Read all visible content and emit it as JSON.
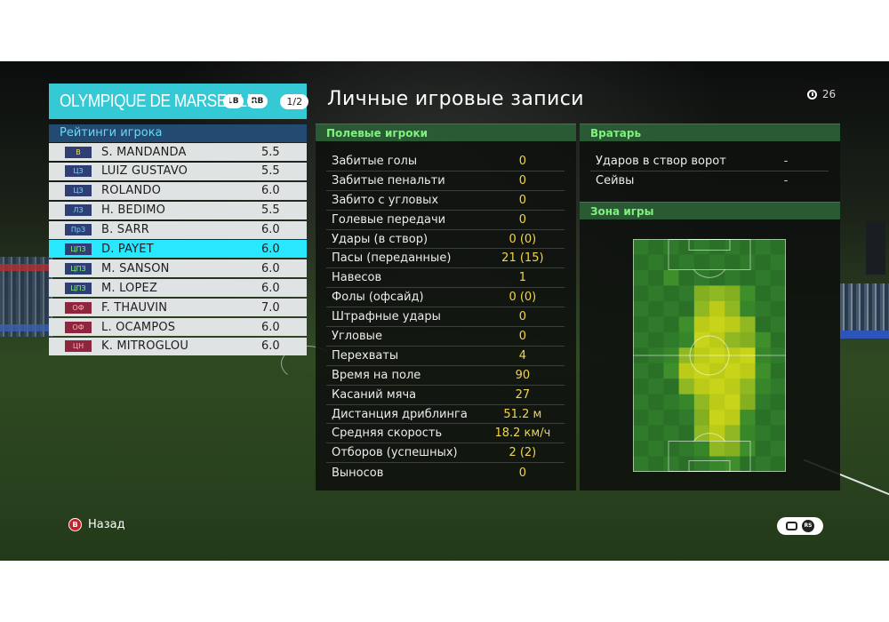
{
  "team": {
    "name": "OLYMPIQUE DE MARSEILLE",
    "lb_label": "LB",
    "rb_label": "RB",
    "page": "1/2"
  },
  "ratings": {
    "title": "Рейтинги игрока",
    "players": [
      {
        "pos": "В",
        "name": "S. MANDANDA",
        "rating": "5.5"
      },
      {
        "pos": "ЦЗ",
        "name": "LUIZ GUSTAVO",
        "rating": "5.5"
      },
      {
        "pos": "ЦЗ",
        "name": "ROLANDO",
        "rating": "6.0"
      },
      {
        "pos": "ЛЗ",
        "name": "H. BEDIMO",
        "rating": "5.5"
      },
      {
        "pos": "ПрЗ",
        "name": "B. SARR",
        "rating": "6.0"
      },
      {
        "pos": "ЦПЗ",
        "name": "D. PAYET",
        "rating": "6.0"
      },
      {
        "pos": "ЦПЗ",
        "name": "M. SANSON",
        "rating": "6.0"
      },
      {
        "pos": "ЦПЗ",
        "name": "M. LOPEZ",
        "rating": "6.0"
      },
      {
        "pos": "ОФ",
        "name": "F. THAUVIN",
        "rating": "7.0"
      },
      {
        "pos": "ОФ",
        "name": "L. OCAMPOS",
        "rating": "6.0"
      },
      {
        "pos": "ЦН",
        "name": "K. MITROGLOU",
        "rating": "6.0"
      }
    ],
    "selected_index": 5
  },
  "records": {
    "title": "Личные игровые записи",
    "timer": "26"
  },
  "outfield": {
    "title": "Полевые игроки",
    "rows": [
      {
        "label": "Забитые голы",
        "value": "0"
      },
      {
        "label": "Забитые пенальти",
        "value": "0"
      },
      {
        "label": "Забито с угловых",
        "value": "0"
      },
      {
        "label": "Голевые передачи",
        "value": "0"
      },
      {
        "label": "Удары (в створ)",
        "value": "0 (0)"
      },
      {
        "label": "Пасы (переданные)",
        "value": "21 (15)"
      },
      {
        "label": "Навесов",
        "value": "1"
      },
      {
        "label": "Фолы (офсайд)",
        "value": "0 (0)"
      },
      {
        "label": "Штрафные удары",
        "value": "0"
      },
      {
        "label": "Угловые",
        "value": "0"
      },
      {
        "label": "Перехваты",
        "value": "4"
      },
      {
        "label": "Время на поле",
        "value": "90"
      },
      {
        "label": "Касаний мяча",
        "value": "27"
      },
      {
        "label": "Дистанция дриблинга",
        "value": "51.2 м"
      },
      {
        "label": "Средняя скорость",
        "value": "18.2 км/ч"
      },
      {
        "label": "Отборов (успешных)",
        "value": "2 (2)"
      },
      {
        "label": "Выносов",
        "value": "0"
      }
    ]
  },
  "goalkeeper": {
    "title": "Вратарь",
    "rows": [
      {
        "label": "Ударов в створ ворот",
        "value": "-"
      },
      {
        "label": "Сейвы",
        "value": "-"
      }
    ]
  },
  "zone": {
    "title": "Зона игры",
    "heatmap": [
      [
        0,
        0,
        0,
        0,
        0,
        0,
        0,
        0,
        0,
        0
      ],
      [
        0,
        0,
        0,
        0,
        0,
        0,
        0,
        0,
        0,
        0
      ],
      [
        0,
        0,
        1,
        0,
        0,
        0,
        0,
        0,
        0,
        0
      ],
      [
        0,
        0,
        0,
        0,
        2,
        2,
        2,
        1,
        0,
        0
      ],
      [
        0,
        0,
        0,
        0,
        2,
        3,
        2,
        1,
        0,
        0
      ],
      [
        0,
        0,
        0,
        1,
        3,
        3,
        3,
        2,
        0,
        0
      ],
      [
        0,
        0,
        0,
        1,
        3,
        3,
        2,
        2,
        1,
        0
      ],
      [
        0,
        0,
        1,
        2,
        3,
        3,
        3,
        3,
        1,
        0
      ],
      [
        0,
        0,
        1,
        3,
        3,
        3,
        3,
        3,
        1,
        0
      ],
      [
        0,
        0,
        0,
        2,
        3,
        3,
        3,
        2,
        1,
        0
      ],
      [
        0,
        0,
        0,
        1,
        2,
        3,
        3,
        2,
        0,
        0
      ],
      [
        0,
        0,
        0,
        0,
        2,
        3,
        3,
        1,
        0,
        0
      ],
      [
        0,
        0,
        0,
        0,
        2,
        3,
        2,
        1,
        0,
        0
      ],
      [
        0,
        0,
        0,
        0,
        1,
        2,
        2,
        1,
        0,
        0
      ],
      [
        0,
        0,
        0,
        0,
        0,
        1,
        1,
        0,
        0,
        0
      ]
    ]
  },
  "footer": {
    "back_label": "Назад",
    "b_key": "B",
    "rs_key": "RS"
  },
  "colors": {
    "team_accent": "#35c9d6",
    "selected_row": "#28e8ff",
    "value_yellow": "#f2d54a",
    "section_green": "#7ff27c"
  }
}
